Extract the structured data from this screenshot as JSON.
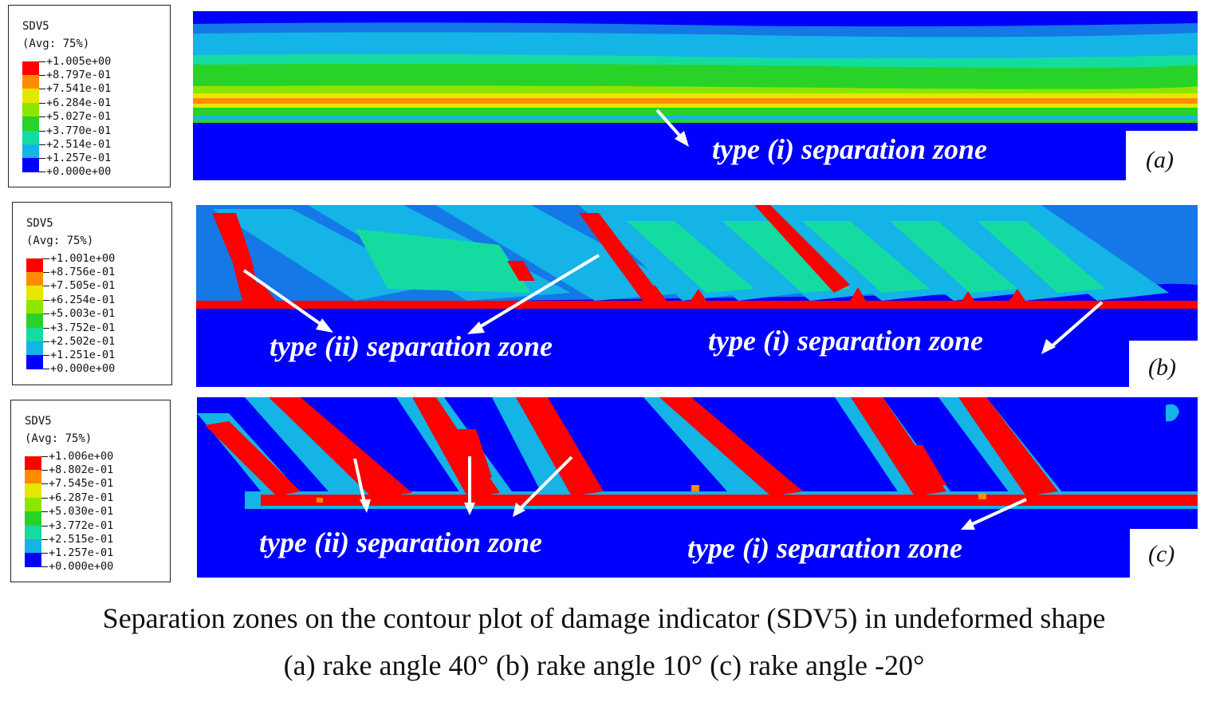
{
  "legends": [
    {
      "title": "SDV5",
      "subtitle": "(Avg: 75%)",
      "values": [
        "+1.005e+00",
        "+8.797e-01",
        "+7.541e-01",
        "+6.284e-01",
        "+5.027e-01",
        "+3.770e-01",
        "+2.514e-01",
        "+1.257e-01",
        "+0.000e+00"
      ]
    },
    {
      "title": "SDV5",
      "subtitle": "(Avg: 75%)",
      "values": [
        "+1.001e+00",
        "+8.756e-01",
        "+7.505e-01",
        "+6.254e-01",
        "+5.003e-01",
        "+3.752e-01",
        "+2.502e-01",
        "+1.251e-01",
        "+0.000e+00"
      ]
    },
    {
      "title": "SDV5",
      "subtitle": "(Avg: 75%)",
      "values": [
        "+1.006e+00",
        "+8.802e-01",
        "+7.545e-01",
        "+6.287e-01",
        "+5.030e-01",
        "+3.772e-01",
        "+2.515e-01",
        "+1.257e-01",
        "+0.000e+00"
      ]
    }
  ],
  "colormap": [
    "#ff0000",
    "#ff8c00",
    "#e6e600",
    "#8ce600",
    "#28d228",
    "#14dca0",
    "#14b4e6",
    "#1478e6",
    "#0000ff"
  ],
  "panels": [
    {
      "tag": "(a)",
      "annotations": [
        "type (i) separation zone"
      ]
    },
    {
      "tag": "(b)",
      "annotations": [
        "type (ii) separation zone",
        "type (i) separation zone"
      ]
    },
    {
      "tag": "(c)",
      "annotations": [
        "type (ii) separation zone",
        "type (i) separation zone"
      ]
    }
  ],
  "caption": {
    "line1": "Separation zones on the contour plot of damage indicator (SDV5) in undeformed shape",
    "line2": "(a) rake angle 40° (b) rake angle 10° (c) rake angle -20°"
  }
}
